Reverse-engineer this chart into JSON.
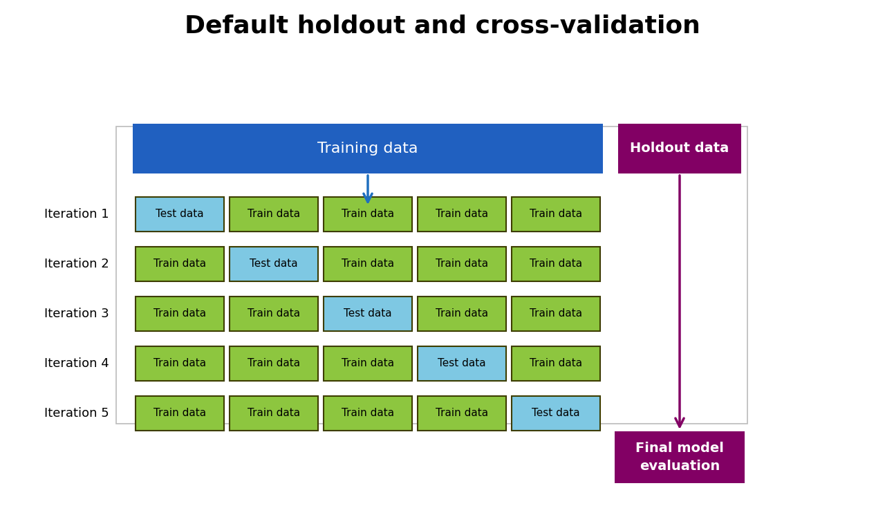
{
  "title": "Default holdout and cross-validation",
  "title_fontsize": 26,
  "title_fontweight": "bold",
  "background_color": "#ffffff",
  "training_data_color": "#2060C0",
  "training_data_text": "Training data",
  "training_data_text_color": "#ffffff",
  "training_data_fontsize": 16,
  "holdout_color": "#820064",
  "holdout_text": "Holdout data",
  "holdout_text_color": "#ffffff",
  "holdout_fontsize": 14,
  "final_model_color": "#820064",
  "final_model_text": "Final model\nevaluation",
  "final_model_text_color": "#ffffff",
  "final_model_fontsize": 14,
  "train_color": "#8DC63F",
  "test_color": "#7EC8E3",
  "cell_border_color": "#3d3d00",
  "train_label": "Train data",
  "test_label": "Test data",
  "iterations": [
    "Iteration 1",
    "Iteration 2",
    "Iteration 3",
    "Iteration 4",
    "Iteration 5"
  ],
  "iteration_label_fontsize": 13,
  "cell_label_fontsize": 11,
  "arrow_color_blue": "#1F6FBF",
  "arrow_color_purple": "#820064",
  "n_folds": 5,
  "test_fold": [
    0,
    1,
    2,
    3,
    4
  ],
  "outer_rect_color": "#BBBBBB",
  "fig_width": 12.8,
  "fig_height": 7.61,
  "dpi": 100
}
